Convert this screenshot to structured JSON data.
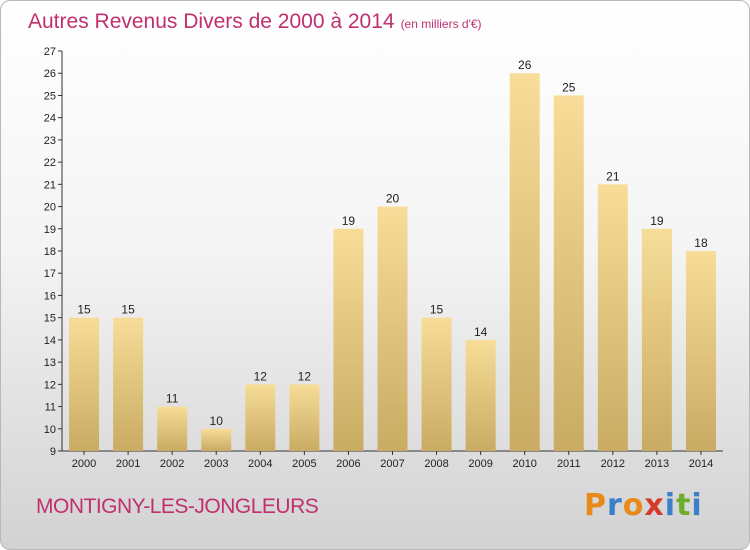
{
  "header": {
    "title": "Autres Revenus Divers de 2000 à 2014",
    "subtitle": "(en milliers d'€)"
  },
  "footer": {
    "commune": "MONTIGNY-LES-JONGLEURS",
    "logo_text": "Proxiti",
    "logo_colors": [
      "#e8891a",
      "#3a7fc8",
      "#e8891a",
      "#d63a2a",
      "#3a7fc8",
      "#6cae2c",
      "#3a7fc8"
    ]
  },
  "chart_data": {
    "type": "bar",
    "title": "Autres Revenus Divers de 2000 à 2014",
    "subtitle": "(en milliers d'€)",
    "categories": [
      "2000",
      "2001",
      "2002",
      "2003",
      "2004",
      "2005",
      "2006",
      "2007",
      "2008",
      "2009",
      "2010",
      "2011",
      "2012",
      "2013",
      "2014"
    ],
    "values": [
      15,
      15,
      11,
      10,
      12,
      12,
      19,
      20,
      15,
      14,
      26,
      25,
      21,
      19,
      18
    ],
    "ylim": [
      9,
      27
    ],
    "yticks": [
      9,
      10,
      11,
      12,
      13,
      14,
      15,
      16,
      17,
      18,
      19,
      20,
      21,
      22,
      23,
      24,
      25,
      26,
      27
    ],
    "grid": false,
    "bar_color": "#e6c77a"
  }
}
